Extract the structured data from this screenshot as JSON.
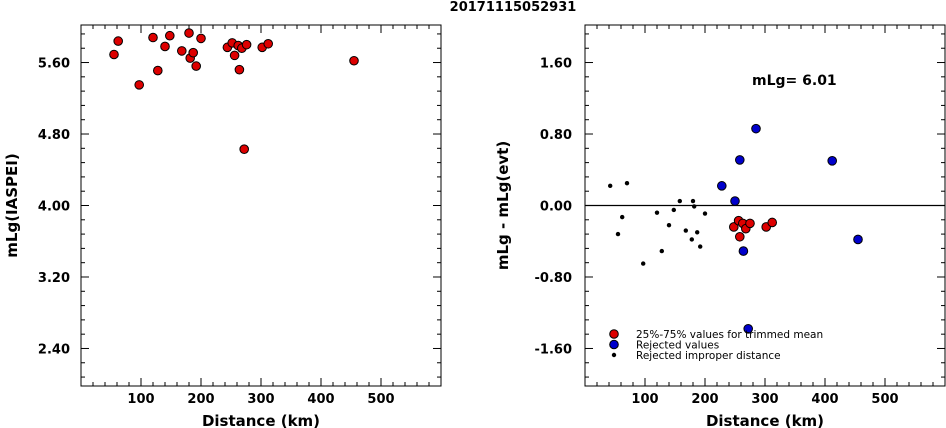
{
  "chart_data": [
    {
      "type": "scatter",
      "title": "20171115052931",
      "xlabel": "Distance (km)",
      "ylabel": "mLg(IASPEI)",
      "xlim": [
        0,
        600
      ],
      "ylim": [
        1.98,
        6.02
      ],
      "xticks": [
        "100",
        "200",
        "300",
        "400",
        "500"
      ],
      "xtick_values": [
        100,
        200,
        300,
        400,
        500
      ],
      "yticks": [
        "2.40",
        "3.20",
        "4.00",
        "4.80",
        "5.60"
      ],
      "ytick_values": [
        2.4,
        3.2,
        4.0,
        4.8,
        5.6
      ],
      "grid": false,
      "series": [
        {
          "color": "#dd0000",
          "points": [
            [
              55,
              5.69
            ],
            [
              62,
              5.84
            ],
            [
              97,
              5.35
            ],
            [
              120,
              5.88
            ],
            [
              128,
              5.51
            ],
            [
              140,
              5.78
            ],
            [
              148,
              5.9
            ],
            [
              168,
              5.73
            ],
            [
              180,
              5.93
            ],
            [
              182,
              5.65
            ],
            [
              187,
              5.71
            ],
            [
              192,
              5.56
            ],
            [
              200,
              5.87
            ],
            [
              244,
              5.77
            ],
            [
              252,
              5.82
            ],
            [
              256,
              5.68
            ],
            [
              262,
              5.79
            ],
            [
              264,
              5.52
            ],
            [
              268,
              5.76
            ],
            [
              272,
              4.63
            ],
            [
              276,
              5.8
            ],
            [
              302,
              5.77
            ],
            [
              312,
              5.81
            ],
            [
              455,
              5.62
            ]
          ]
        }
      ]
    },
    {
      "type": "scatter",
      "xlabel": "Distance (km)",
      "ylabel": "mLg - mLg(evt)",
      "annotation": "mLg= 6.01",
      "reference_line": 0,
      "xlim": [
        0,
        600
      ],
      "ylim": [
        -2.02,
        2.02
      ],
      "xticks": [
        "100",
        "200",
        "300",
        "400",
        "500"
      ],
      "xtick_values": [
        100,
        200,
        300,
        400,
        500
      ],
      "yticks": [
        "-1.60",
        "-0.80",
        "0.00",
        "0.80",
        "1.60"
      ],
      "ytick_values": [
        -1.6,
        -0.8,
        0.0,
        0.8,
        1.6
      ],
      "grid": false,
      "legend_position": "bottom-left",
      "series": [
        {
          "name": "25%-75% values for trimmed mean",
          "marker": "circle",
          "color": "#dd0000",
          "points": [
            [
              248,
              -0.24
            ],
            [
              256,
              -0.17
            ],
            [
              258,
              -0.35
            ],
            [
              263,
              -0.2
            ],
            [
              268,
              -0.26
            ],
            [
              275,
              -0.2
            ],
            [
              302,
              -0.24
            ],
            [
              312,
              -0.19
            ]
          ]
        },
        {
          "name": "Rejected values",
          "marker": "circle",
          "color": "#0000cc",
          "points": [
            [
              228,
              0.22
            ],
            [
              250,
              0.05
            ],
            [
              258,
              0.51
            ],
            [
              264,
              -0.51
            ],
            [
              272,
              -1.38
            ],
            [
              285,
              0.86
            ],
            [
              412,
              0.5
            ],
            [
              455,
              -0.38
            ]
          ]
        },
        {
          "name": "Rejected improper distance",
          "marker": "dot",
          "color": "#000000",
          "points": [
            [
              42,
              0.22
            ],
            [
              55,
              -0.32
            ],
            [
              62,
              -0.13
            ],
            [
              70,
              0.25
            ],
            [
              97,
              -0.65
            ],
            [
              120,
              -0.08
            ],
            [
              128,
              -0.51
            ],
            [
              140,
              -0.22
            ],
            [
              148,
              -0.05
            ],
            [
              158,
              0.05
            ],
            [
              168,
              -0.28
            ],
            [
              178,
              -0.38
            ],
            [
              180,
              0.05
            ],
            [
              182,
              -0.01
            ],
            [
              187,
              -0.3
            ],
            [
              192,
              -0.46
            ],
            [
              200,
              -0.09
            ]
          ]
        }
      ]
    }
  ]
}
